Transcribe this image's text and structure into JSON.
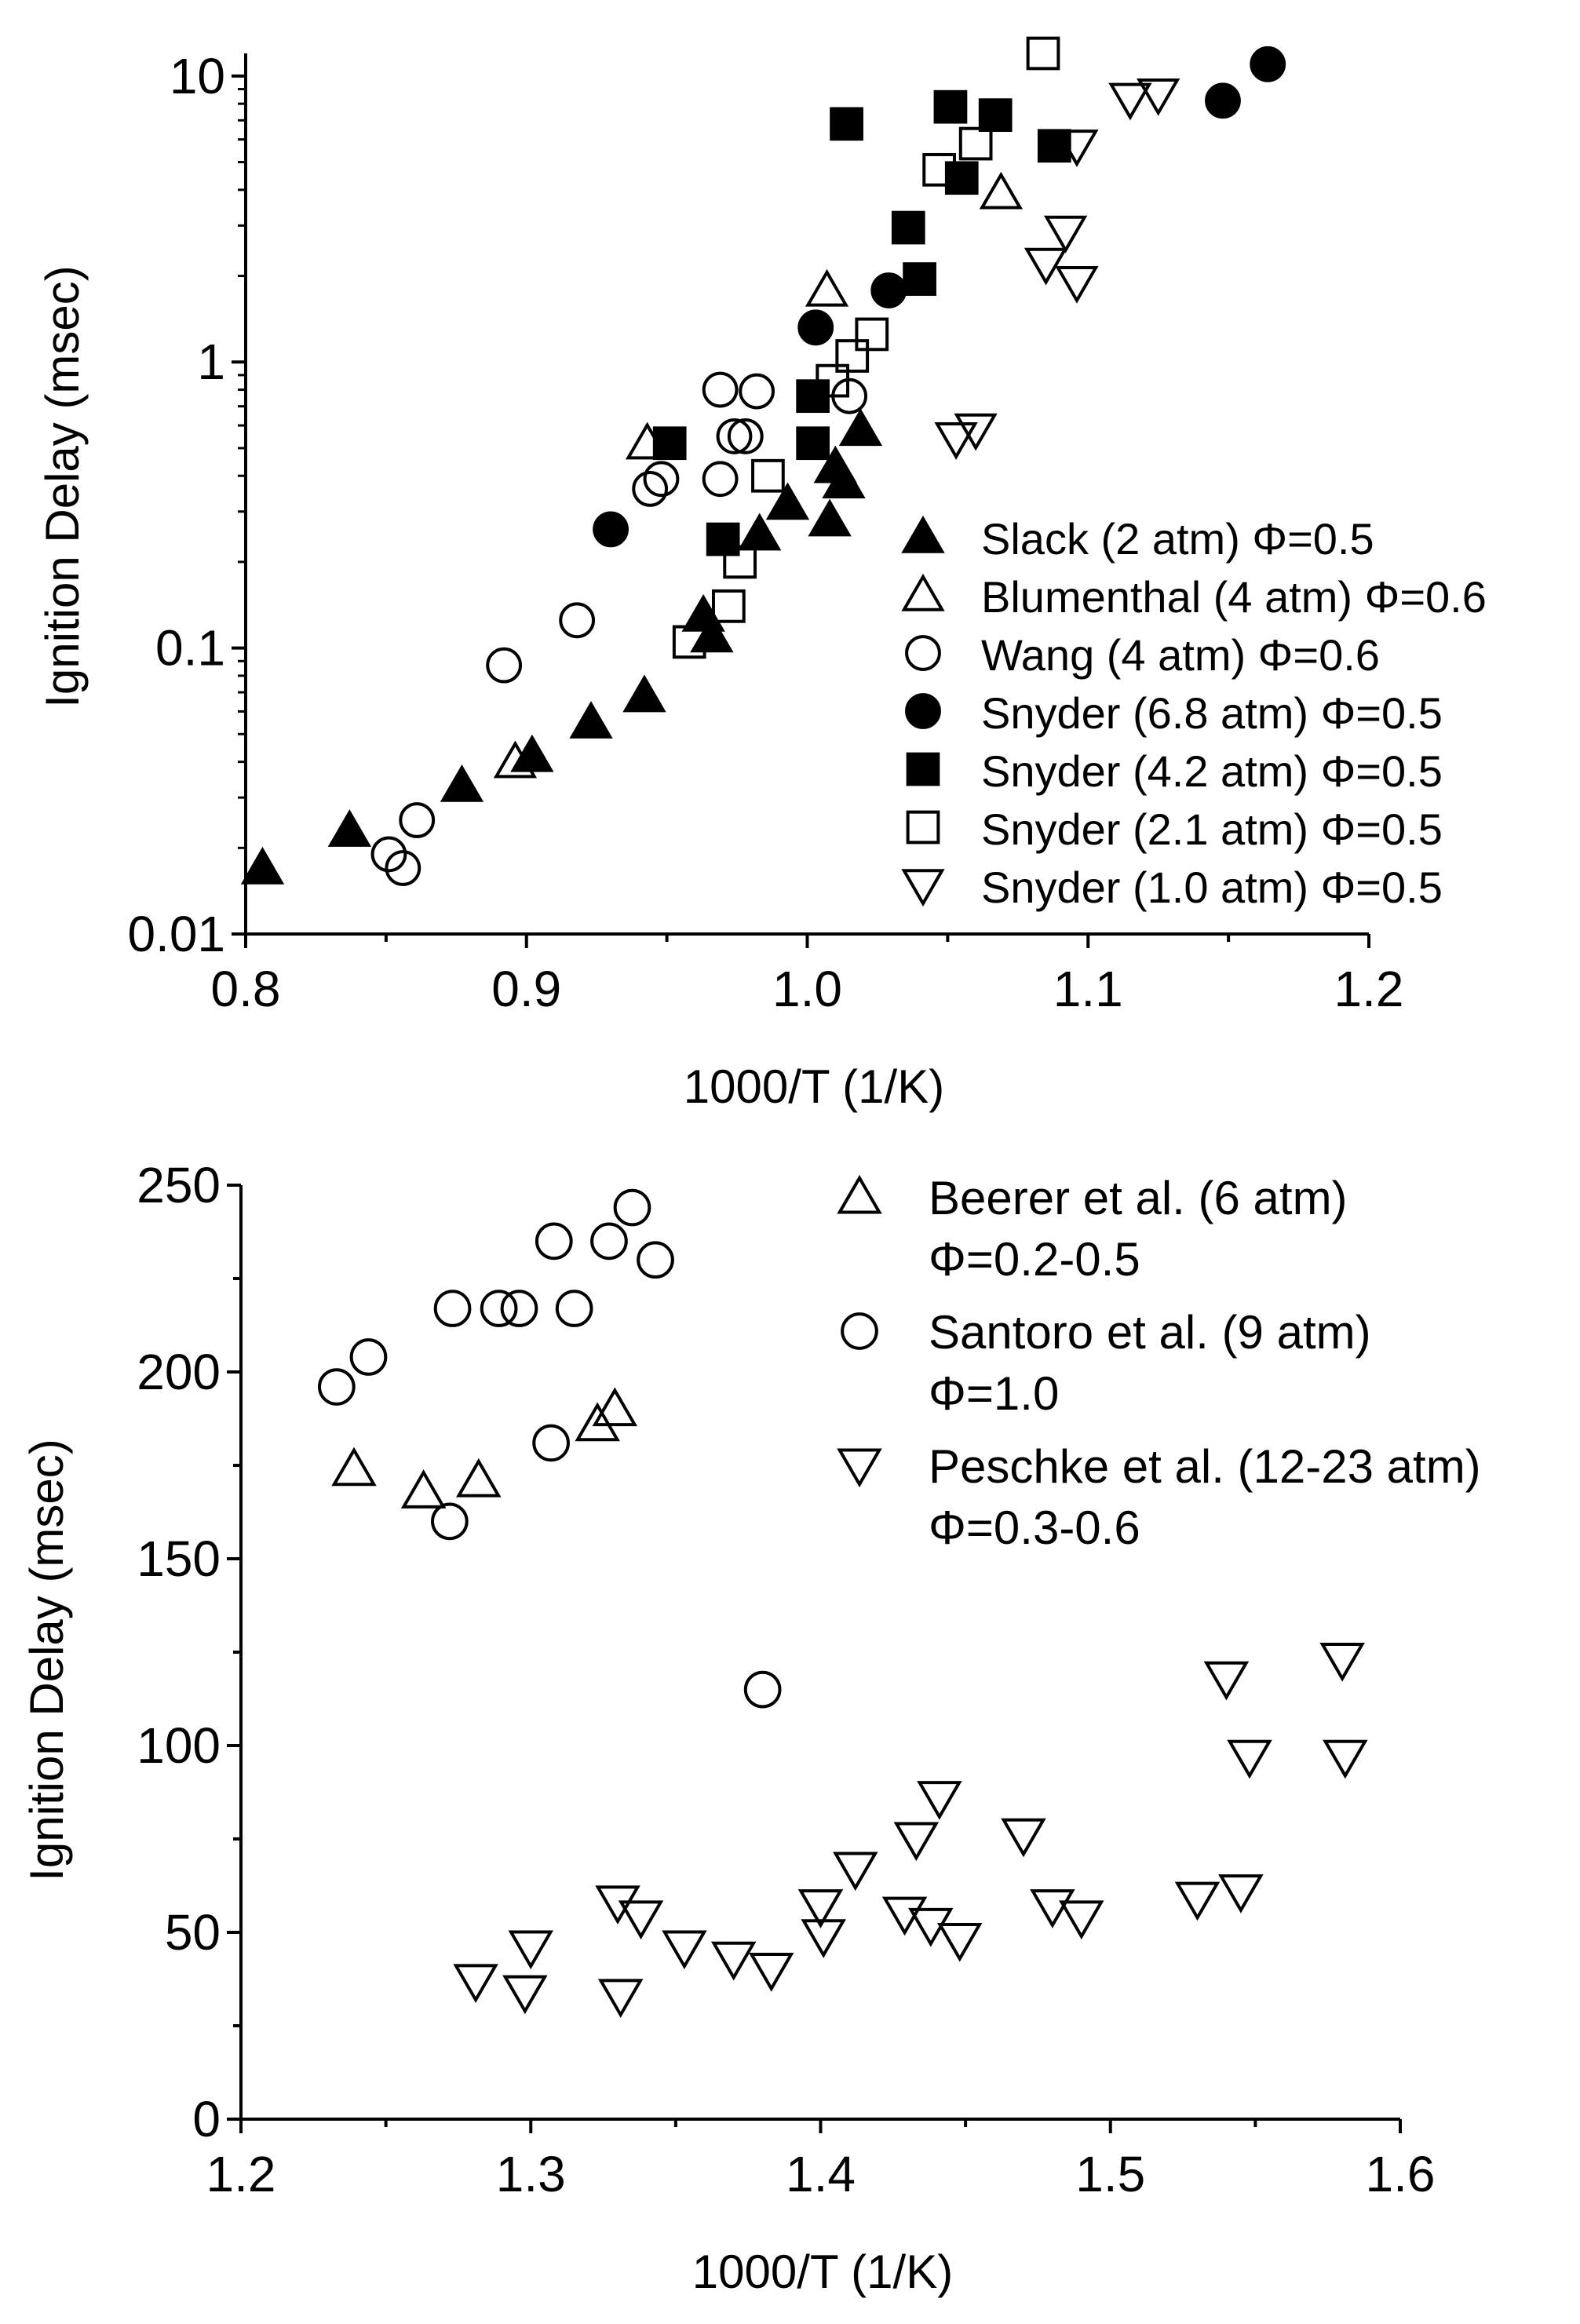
{
  "chart_data": [
    {
      "type": "scatter",
      "y_scale": "log",
      "xlabel": "1000/T (1/K)",
      "ylabel": "Ignition Delay (msec)",
      "xlim": [
        0.8,
        1.2
      ],
      "ylim": [
        0.01,
        12
      ],
      "x_ticks": [
        {
          "v": 0.8,
          "label": "0.8"
        },
        {
          "v": 0.9,
          "label": "0.9"
        },
        {
          "v": 1.0,
          "label": "1.0"
        },
        {
          "v": 1.1,
          "label": "1.1"
        },
        {
          "v": 1.2,
          "label": "1.2"
        }
      ],
      "y_ticks": [
        {
          "v": 0.01,
          "label": "0.01"
        },
        {
          "v": 0.1,
          "label": "0.1"
        },
        {
          "v": 1,
          "label": "1"
        },
        {
          "v": 10,
          "label": "10"
        }
      ],
      "legend_position": "right-lower",
      "series": [
        {
          "name": "Slack (2 atm) Φ=0.5",
          "marker": "triangle-up",
          "filled": true,
          "points": [
            [
              0.806,
              0.017
            ],
            [
              0.837,
              0.023
            ],
            [
              0.877,
              0.033
            ],
            [
              0.902,
              0.042
            ],
            [
              0.923,
              0.055
            ],
            [
              0.942,
              0.068
            ],
            [
              0.963,
              0.13
            ],
            [
              0.966,
              0.11
            ],
            [
              0.983,
              0.25
            ],
            [
              0.993,
              0.32
            ],
            [
              1.008,
              0.28
            ],
            [
              1.01,
              0.43
            ],
            [
              1.013,
              0.38
            ],
            [
              1.019,
              0.58
            ]
          ]
        },
        {
          "name": "Blumenthal (4 atm) Φ=0.6",
          "marker": "triangle-up",
          "filled": false,
          "points": [
            [
              0.896,
              0.04
            ],
            [
              0.943,
              0.52
            ],
            [
              1.007,
              1.78
            ],
            [
              1.069,
              3.9
            ]
          ]
        },
        {
          "name": "Wang (4 atm) Φ=0.6",
          "marker": "circle",
          "filled": false,
          "points": [
            [
              0.851,
              0.019
            ],
            [
              0.856,
              0.017
            ],
            [
              0.861,
              0.025
            ],
            [
              0.892,
              0.087
            ],
            [
              0.918,
              0.125
            ],
            [
              0.944,
              0.36
            ],
            [
              0.948,
              0.39
            ],
            [
              0.969,
              0.39
            ],
            [
              0.969,
              0.8
            ],
            [
              0.974,
              0.55
            ],
            [
              0.978,
              0.55
            ],
            [
              0.982,
              0.79
            ],
            [
              1.015,
              0.76
            ]
          ]
        },
        {
          "name": "Snyder (6.8 atm) Φ=0.5",
          "marker": "circle",
          "filled": true,
          "points": [
            [
              0.93,
              0.26
            ],
            [
              1.003,
              1.32
            ],
            [
              1.029,
              1.78
            ],
            [
              1.148,
              8.2
            ],
            [
              1.164,
              11.0
            ]
          ]
        },
        {
          "name": "Snyder (4.2 atm) Φ=0.5",
          "marker": "square",
          "filled": true,
          "points": [
            [
              0.951,
              0.52
            ],
            [
              0.97,
              0.24
            ],
            [
              1.002,
              0.76
            ],
            [
              1.002,
              0.52
            ],
            [
              1.014,
              6.8
            ],
            [
              1.036,
              2.95
            ],
            [
              1.04,
              1.95
            ],
            [
              1.051,
              7.8
            ],
            [
              1.055,
              4.4
            ],
            [
              1.067,
              7.3
            ],
            [
              1.088,
              5.7
            ]
          ]
        },
        {
          "name": "Snyder (2.1 atm) Φ=0.5",
          "marker": "square",
          "filled": false,
          "points": [
            [
              0.958,
              0.105
            ],
            [
              0.972,
              0.14
            ],
            [
              0.976,
              0.2
            ],
            [
              0.986,
              0.4
            ],
            [
              1.009,
              0.86
            ],
            [
              1.016,
              1.05
            ],
            [
              1.023,
              1.25
            ],
            [
              1.047,
              4.7
            ],
            [
              1.06,
              5.8
            ],
            [
              1.084,
              12.0
            ]
          ]
        },
        {
          "name": "Snyder (1.0 atm) Φ=0.5",
          "marker": "triangle-down",
          "filled": false,
          "points": [
            [
              1.053,
              0.54
            ],
            [
              1.06,
              0.58
            ],
            [
              1.085,
              2.2
            ],
            [
              1.092,
              2.85
            ],
            [
              1.096,
              1.9
            ],
            [
              1.096,
              5.7
            ],
            [
              1.115,
              8.3
            ],
            [
              1.125,
              8.6
            ]
          ]
        }
      ]
    },
    {
      "type": "scatter",
      "y_scale": "linear",
      "xlabel": "1000/T (1/K)",
      "ylabel": "Ignition Delay (msec)",
      "xlim": [
        1.2,
        1.6
      ],
      "ylim": [
        0,
        250
      ],
      "x_ticks": [
        {
          "v": 1.2,
          "label": "1.2"
        },
        {
          "v": 1.3,
          "label": "1.3"
        },
        {
          "v": 1.4,
          "label": "1.4"
        },
        {
          "v": 1.5,
          "label": "1.5"
        },
        {
          "v": 1.6,
          "label": "1.6"
        }
      ],
      "y_ticks": [
        {
          "v": 0,
          "label": "0"
        },
        {
          "v": 50,
          "label": "50"
        },
        {
          "v": 100,
          "label": "100"
        },
        {
          "v": 150,
          "label": "150"
        },
        {
          "v": 200,
          "label": "200"
        },
        {
          "v": 250,
          "label": "250"
        }
      ],
      "legend_position": "top-right",
      "series": [
        {
          "name": "Beerer et al. (6 atm)",
          "name2": "Φ=0.2-0.5",
          "marker": "triangle-up",
          "filled": false,
          "points": [
            [
              1.239,
              174
            ],
            [
              1.263,
              168
            ],
            [
              1.282,
              171
            ],
            [
              1.323,
              186
            ],
            [
              1.329,
              190
            ]
          ]
        },
        {
          "name": "Santoro et al. (9 atm)",
          "name2": "Φ=1.0",
          "marker": "circle",
          "filled": false,
          "points": [
            [
              1.233,
              196
            ],
            [
              1.244,
              204
            ],
            [
              1.272,
              160
            ],
            [
              1.273,
              217
            ],
            [
              1.289,
              217
            ],
            [
              1.296,
              217
            ],
            [
              1.307,
              181
            ],
            [
              1.308,
              235
            ],
            [
              1.315,
              217
            ],
            [
              1.327,
              235
            ],
            [
              1.335,
              244
            ],
            [
              1.343,
              230
            ],
            [
              1.38,
              115
            ]
          ]
        },
        {
          "name": "Peschke et al. (12-23 atm)",
          "name2": "Φ=0.3-0.6",
          "marker": "triangle-down",
          "filled": false,
          "points": [
            [
              1.281,
              37
            ],
            [
              1.298,
              34
            ],
            [
              1.3,
              46
            ],
            [
              1.33,
              58
            ],
            [
              1.331,
              33
            ],
            [
              1.338,
              54
            ],
            [
              1.353,
              46
            ],
            [
              1.37,
              43
            ],
            [
              1.383,
              40
            ],
            [
              1.4,
              57
            ],
            [
              1.401,
              49
            ],
            [
              1.412,
              67
            ],
            [
              1.429,
              55
            ],
            [
              1.433,
              75
            ],
            [
              1.438,
              52
            ],
            [
              1.441,
              86
            ],
            [
              1.448,
              48
            ],
            [
              1.47,
              76
            ],
            [
              1.48,
              57
            ],
            [
              1.49,
              54
            ],
            [
              1.53,
              59
            ],
            [
              1.54,
              118
            ],
            [
              1.545,
              61
            ],
            [
              1.548,
              97
            ],
            [
              1.58,
              123
            ],
            [
              1.581,
              97
            ]
          ]
        }
      ]
    }
  ]
}
